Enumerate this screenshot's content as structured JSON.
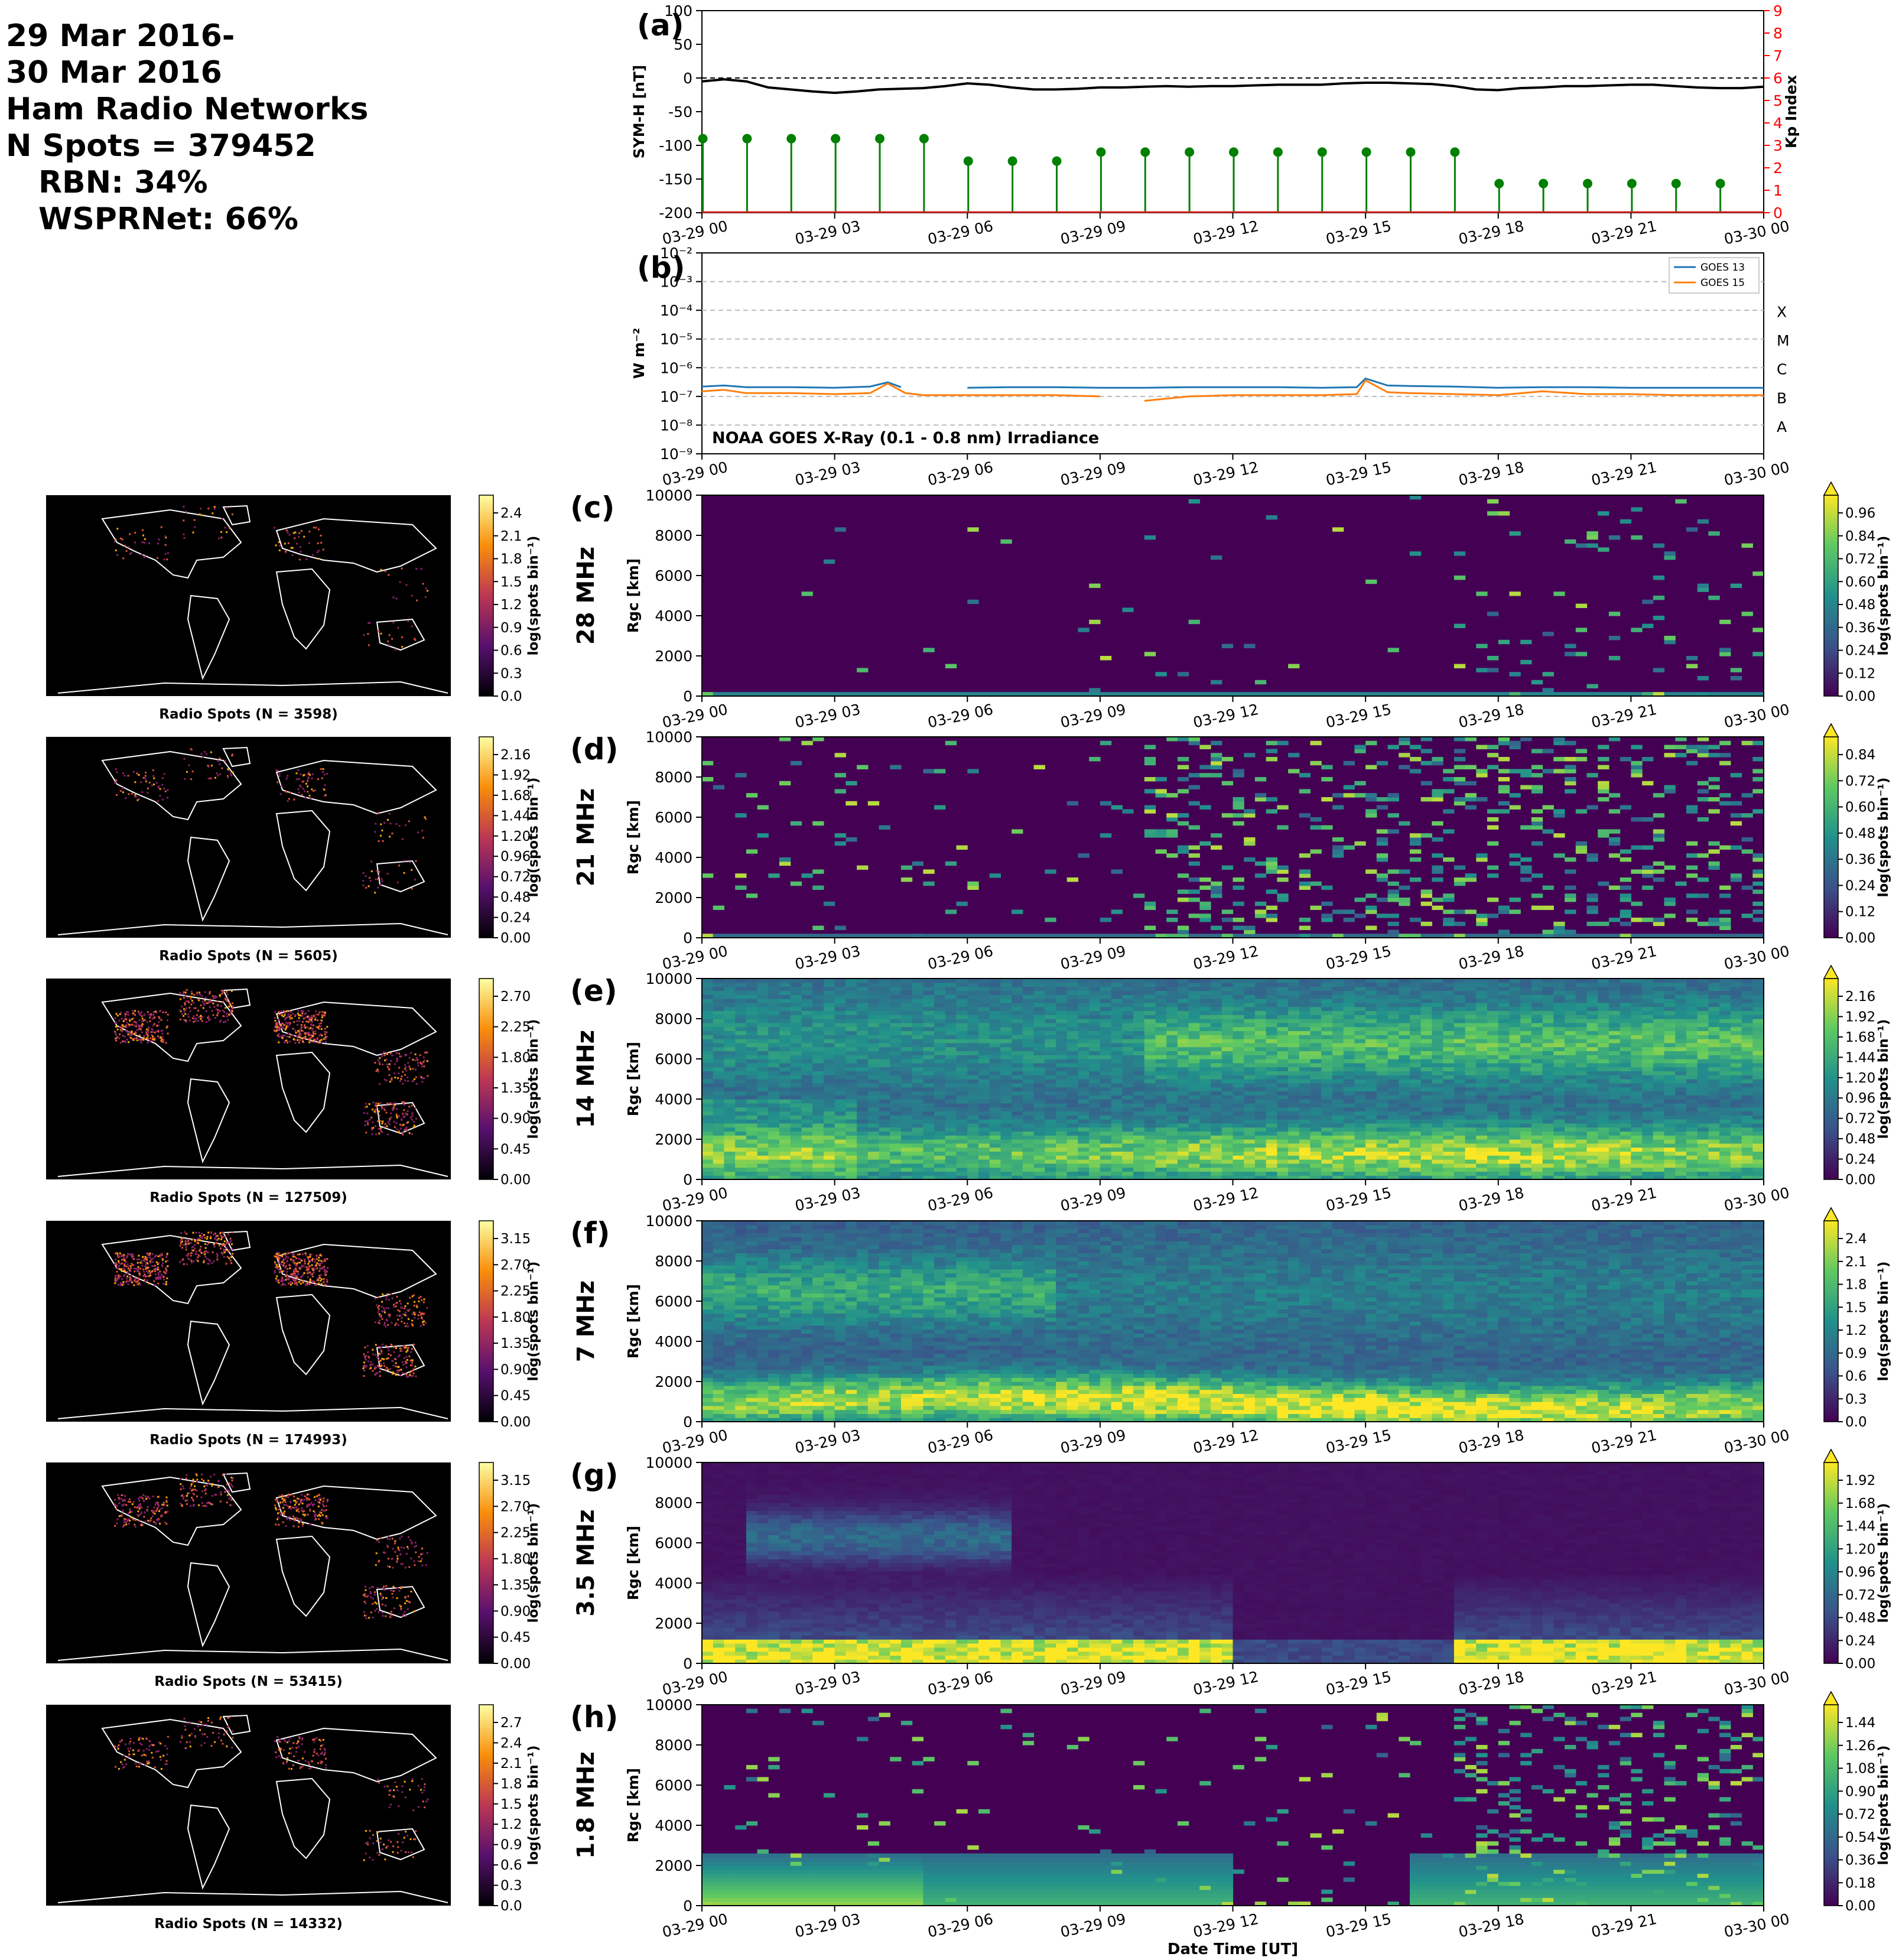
{
  "header": {
    "lines": [
      "29 Mar 2016-",
      "30 Mar 2016",
      "Ham Radio Networks",
      "N Spots = 379452"
    ],
    "sub_lines": [
      "RBN: 34%",
      "WSPRNet: 66%"
    ]
  },
  "time_ticks": [
    "03-29 00",
    "03-29 03",
    "03-29 06",
    "03-29 09",
    "03-29 12",
    "03-29 15",
    "03-29 18",
    "03-29 21",
    "03-30 00"
  ],
  "xlabel": "Date Time [UT]",
  "colors": {
    "symh": "#000000",
    "kp": "#008000",
    "kp_axis": "#ff0000",
    "goes13": "#1f77b4",
    "goes15": "#ff7f0e",
    "map_bg": "#000000",
    "viridis_low": "#440154",
    "viridis_high": "#fde725"
  },
  "chart_data": [
    {
      "id": "a",
      "type": "line",
      "panel_label": "(a)",
      "ylabel": "SYM-H [nT]",
      "ylabel_right": "Kp Index",
      "ylim": [
        -200,
        100
      ],
      "yticks": [
        "100",
        "50",
        "0",
        "-50",
        "-100",
        "-150",
        "-200"
      ],
      "y2lim": [
        0,
        9
      ],
      "y2ticks": [
        "0",
        "1",
        "2",
        "3",
        "4",
        "5",
        "6",
        "7",
        "8",
        "9"
      ],
      "xlim_hours": [
        0,
        24
      ],
      "symh": {
        "x": [
          0,
          0.5,
          1,
          1.5,
          2,
          2.5,
          3,
          3.5,
          4,
          4.5,
          5,
          5.5,
          6,
          6.5,
          7,
          7.5,
          8,
          8.5,
          9,
          9.5,
          10,
          10.5,
          11,
          11.5,
          12,
          12.5,
          13,
          13.5,
          14,
          14.5,
          15,
          15.5,
          16,
          16.5,
          17,
          17.5,
          18,
          18.5,
          19,
          19.5,
          20,
          20.5,
          21,
          21.5,
          22,
          22.5,
          23,
          23.5,
          24
        ],
        "y": [
          -5,
          -2,
          -5,
          -14,
          -17,
          -20,
          -22,
          -20,
          -17,
          -16,
          -15,
          -12,
          -8,
          -10,
          -14,
          -17,
          -17,
          -16,
          -14,
          -14,
          -13,
          -12,
          -13,
          -12,
          -12,
          -11,
          -10,
          -10,
          -10,
          -8,
          -7,
          -7,
          -8,
          -9,
          -12,
          -17,
          -18,
          -15,
          -14,
          -12,
          -12,
          -11,
          -10,
          -10,
          -12,
          -14,
          -15,
          -15,
          -13
        ]
      },
      "kp": {
        "x": [
          0,
          1,
          2,
          3,
          4,
          5,
          6,
          7,
          8,
          9,
          10,
          11,
          12,
          13,
          14,
          15,
          16,
          17,
          18,
          19,
          20,
          21,
          22,
          23
        ],
        "y": [
          3.3,
          3.3,
          3.3,
          3.3,
          3.3,
          3.3,
          2.3,
          2.3,
          2.3,
          2.7,
          2.7,
          2.7,
          2.7,
          2.7,
          2.7,
          2.7,
          2.7,
          2.7,
          1.3,
          1.3,
          1.3,
          1.3,
          1.3,
          1.3
        ]
      }
    },
    {
      "id": "b",
      "type": "line",
      "panel_label": "(b)",
      "ylabel": "W m⁻²",
      "log_scale": true,
      "ylim": [
        1e-09,
        0.01
      ],
      "yticks": [
        "10⁻²",
        "10⁻³",
        "10⁻⁴",
        "10⁻⁵",
        "10⁻⁶",
        "10⁻⁷",
        "10⁻⁸",
        "10⁻⁹"
      ],
      "flare_classes": [
        "X",
        "M",
        "C",
        "B",
        "A"
      ],
      "annotation": "NOAA GOES X-Ray (0.1 - 0.8 nm) Irradiance",
      "legend_position": "top-right",
      "series": [
        {
          "name": "GOES 13",
          "x": [
            0,
            0.5,
            1,
            2,
            3,
            3.8,
            4.2,
            4.5,
            5.5,
            6,
            7,
            8,
            9,
            10,
            11,
            12,
            13,
            14,
            14.8,
            15,
            15.5,
            16,
            17,
            18,
            19,
            20,
            21,
            22,
            23,
            24
          ],
          "y": [
            2.2e-07,
            2.4e-07,
            2.1e-07,
            2.1e-07,
            2e-07,
            2.2e-07,
            3.1e-07,
            2.1e-07,
            null,
            2e-07,
            2.1e-07,
            2.1e-07,
            2e-07,
            2e-07,
            2.1e-07,
            2.1e-07,
            2.1e-07,
            2e-07,
            2.1e-07,
            4.2e-07,
            2.4e-07,
            2.3e-07,
            2.2e-07,
            2e-07,
            2.1e-07,
            2.1e-07,
            2e-07,
            2e-07,
            2e-07,
            2e-07
          ]
        },
        {
          "name": "GOES 15",
          "x": [
            0,
            0.5,
            1,
            2,
            3,
            3.8,
            4.2,
            4.6,
            5,
            6,
            7,
            8,
            9,
            9.5,
            10,
            11,
            12,
            13,
            14,
            14.8,
            15,
            15.5,
            16,
            17,
            18,
            19,
            20,
            21,
            22,
            23,
            24
          ],
          "y": [
            1.5e-07,
            1.7e-07,
            1.3e-07,
            1.3e-07,
            1.2e-07,
            1.3e-07,
            2.8e-07,
            1.3e-07,
            1.1e-07,
            1.1e-07,
            1.1e-07,
            1.1e-07,
            1e-07,
            null,
            7e-08,
            1e-07,
            1.1e-07,
            1.1e-07,
            1.1e-07,
            1.2e-07,
            3.6e-07,
            1.4e-07,
            1.3e-07,
            1.2e-07,
            1.1e-07,
            1.5e-07,
            1.2e-07,
            1.2e-07,
            1.1e-07,
            1.1e-07,
            1.1e-07
          ]
        }
      ]
    },
    {
      "id": "c",
      "type": "heatmap",
      "panel_label": "(c)",
      "band": "28 MHz",
      "ylabel": "Rgc [km]",
      "ylim": [
        0,
        10000
      ],
      "yticks": [
        "10000",
        "8000",
        "6000",
        "4000",
        "2000",
        "0"
      ],
      "cbar_label": "log(spots bin⁻¹)",
      "cbar_ticks": [
        "0.96",
        "0.84",
        "0.72",
        "0.60",
        "0.48",
        "0.36",
        "0.24",
        "0.12",
        "0.00"
      ],
      "map_title": "Radio Spots (N = 3598)",
      "map_cbar_ticks": [
        "2.4",
        "2.1",
        "1.8",
        "1.5",
        "1.2",
        "0.9",
        "0.6",
        "0.3",
        "0.0"
      ],
      "activity": 0.1
    },
    {
      "id": "d",
      "type": "heatmap",
      "panel_label": "(d)",
      "band": "21 MHz",
      "ylabel": "Rgc [km]",
      "ylim": [
        0,
        10000
      ],
      "yticks": [
        "10000",
        "8000",
        "6000",
        "4000",
        "2000",
        "0"
      ],
      "cbar_label": "log(spots bin⁻¹)",
      "cbar_ticks": [
        "0.84",
        "0.72",
        "0.60",
        "0.48",
        "0.36",
        "0.24",
        "0.12",
        "0.00"
      ],
      "map_title": "Radio Spots (N = 5605)",
      "map_cbar_ticks": [
        "2.16",
        "1.92",
        "1.68",
        "1.44",
        "1.20",
        "0.96",
        "0.72",
        "0.48",
        "0.24",
        "0.00"
      ],
      "activity": 0.22
    },
    {
      "id": "e",
      "type": "heatmap",
      "panel_label": "(e)",
      "band": "14 MHz",
      "ylabel": "Rgc [km]",
      "ylim": [
        0,
        10000
      ],
      "yticks": [
        "10000",
        "8000",
        "6000",
        "4000",
        "2000",
        "0"
      ],
      "cbar_label": "log(spots bin⁻¹)",
      "cbar_ticks": [
        "2.16",
        "1.92",
        "1.68",
        "1.44",
        "1.20",
        "0.96",
        "0.72",
        "0.48",
        "0.24",
        "0.00"
      ],
      "map_title": "Radio Spots (N = 127509)",
      "map_cbar_ticks": [
        "2.70",
        "2.25",
        "1.80",
        "1.35",
        "0.90",
        "0.45",
        "0.00"
      ],
      "activity": 0.75
    },
    {
      "id": "f",
      "type": "heatmap",
      "panel_label": "(f)",
      "band": "7 MHz",
      "ylabel": "Rgc [km]",
      "ylim": [
        0,
        10000
      ],
      "yticks": [
        "10000",
        "8000",
        "6000",
        "4000",
        "2000",
        "0"
      ],
      "cbar_label": "log(spots bin⁻¹)",
      "cbar_ticks": [
        "2.4",
        "2.1",
        "1.8",
        "1.5",
        "1.2",
        "0.9",
        "0.6",
        "0.3",
        "0.0"
      ],
      "map_title": "Radio Spots (N = 174993)",
      "map_cbar_ticks": [
        "3.15",
        "2.70",
        "2.25",
        "1.80",
        "1.35",
        "0.90",
        "0.45",
        "0.00"
      ],
      "activity": 0.9
    },
    {
      "id": "g",
      "type": "heatmap",
      "panel_label": "(g)",
      "band": "3.5 MHz",
      "ylabel": "Rgc [km]",
      "ylim": [
        0,
        10000
      ],
      "yticks": [
        "10000",
        "8000",
        "6000",
        "4000",
        "2000",
        "0"
      ],
      "cbar_label": "log(spots bin⁻¹)",
      "cbar_ticks": [
        "1.92",
        "1.68",
        "1.44",
        "1.20",
        "0.96",
        "0.72",
        "0.48",
        "0.24",
        "0.00"
      ],
      "map_title": "Radio Spots (N = 53415)",
      "map_cbar_ticks": [
        "3.15",
        "2.70",
        "2.25",
        "1.80",
        "1.35",
        "0.90",
        "0.45",
        "0.00"
      ],
      "activity": 0.6
    },
    {
      "id": "h",
      "type": "heatmap",
      "panel_label": "(h)",
      "band": "1.8 MHz",
      "ylabel": "Rgc [km]",
      "ylim": [
        0,
        10000
      ],
      "yticks": [
        "10000",
        "8000",
        "6000",
        "4000",
        "2000",
        "0"
      ],
      "cbar_label": "log(spots bin⁻¹)",
      "cbar_ticks": [
        "1.44",
        "1.26",
        "1.08",
        "0.90",
        "0.72",
        "0.54",
        "0.36",
        "0.18",
        "0.00"
      ],
      "map_title": "Radio Spots (N = 14332)",
      "map_cbar_ticks": [
        "2.7",
        "2.4",
        "2.1",
        "1.8",
        "1.5",
        "1.2",
        "0.9",
        "0.6",
        "0.3",
        "0.0"
      ],
      "activity": 0.4
    }
  ]
}
